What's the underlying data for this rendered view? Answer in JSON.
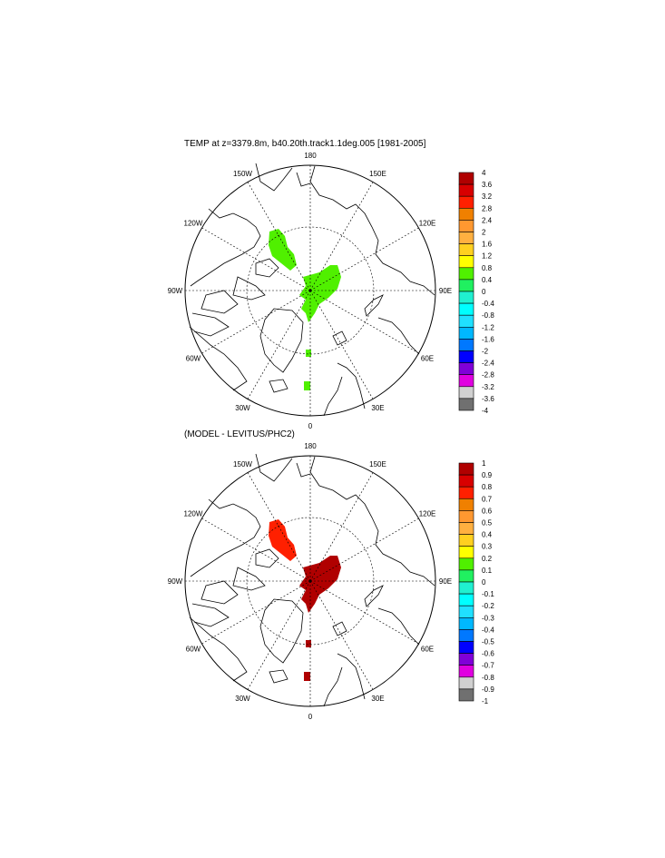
{
  "panels": [
    {
      "title": "TEMP at z=3379.8m, b40.20th.track1.1deg.005 [1981-2005]",
      "anomaly_color": "#50f000",
      "colorbar": {
        "labels": [
          "4",
          "3.6",
          "3.2",
          "2.8",
          "2.4",
          "2",
          "1.6",
          "1.2",
          "0.8",
          "0.4",
          "0",
          "-0.4",
          "-0.8",
          "-1.2",
          "-1.6",
          "-2",
          "-2.4",
          "-2.8",
          "-3.2",
          "-3.6",
          "-4"
        ]
      }
    },
    {
      "title": "(MODEL - LEVITUS/PHC2)",
      "anomaly_color": "#b00000",
      "anomaly_color_2": "#ff2000",
      "colorbar": {
        "labels": [
          "1",
          "0.9",
          "0.8",
          "0.7",
          "0.6",
          "0.5",
          "0.4",
          "0.3",
          "0.2",
          "0.1",
          "0",
          "-0.1",
          "-0.2",
          "-0.3",
          "-0.4",
          "-0.5",
          "-0.6",
          "-0.7",
          "-0.8",
          "-0.9",
          "-1"
        ]
      }
    }
  ],
  "longitude_labels": [
    "180",
    "150E",
    "120E",
    "90E",
    "60E",
    "30E",
    "0",
    "30W",
    "60W",
    "90W",
    "120W",
    "150W"
  ],
  "colorbar_colors": [
    "#b00000",
    "#d80000",
    "#ff2000",
    "#f08000",
    "#ff9830",
    "#ffb040",
    "#ffd020",
    "#ffff00",
    "#50f000",
    "#20f060",
    "#20f0d0",
    "#00ffff",
    "#20e0ff",
    "#00b8ff",
    "#0078ff",
    "#0000ff",
    "#8000d8",
    "#e000e0",
    "#d0d0d0",
    "#707070"
  ]
}
